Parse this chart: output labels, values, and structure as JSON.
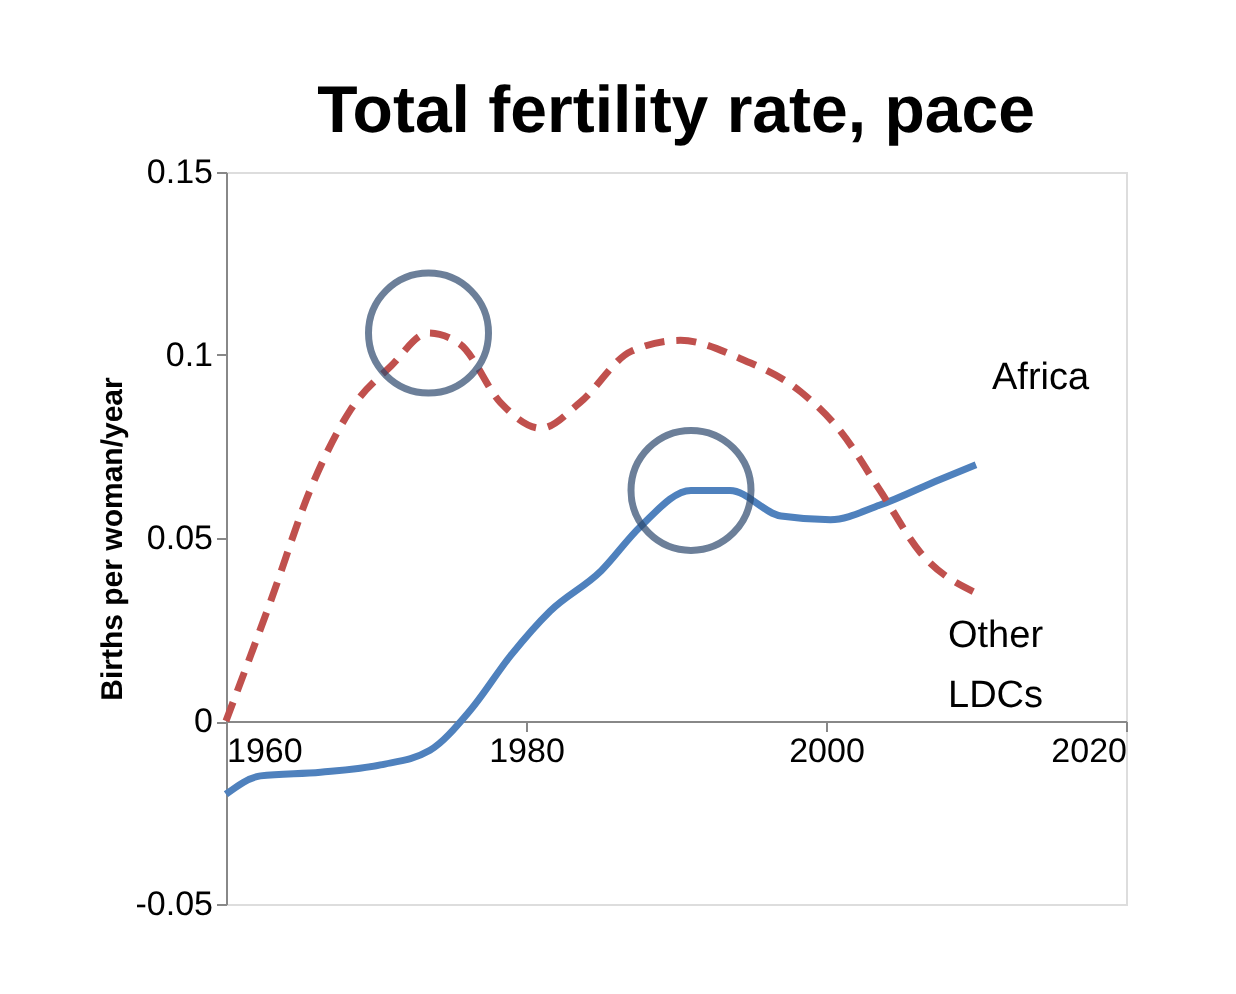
{
  "chart_data": {
    "type": "line",
    "title": "Total fertility rate, pace",
    "ylabel": "Births per woman/year",
    "xlim": [
      1960,
      2020
    ],
    "xticks": [
      1960,
      1980,
      2000,
      2020
    ],
    "ylim": [
      -0.05,
      0.15
    ],
    "yticks": [
      -0.05,
      0,
      0.05,
      0.1,
      0.15
    ],
    "series": [
      {
        "name": "Africa",
        "color": "#4f81bd",
        "line_style": "solid",
        "x": [
          1960,
          1962.3,
          1966.3,
          1970.3,
          1973.6,
          1976.3,
          1979,
          1981.6,
          1985,
          1987.6,
          1991,
          1993.6,
          1997,
          2000.3,
          2003.6,
          2007.6,
          2010
        ],
        "values": [
          -0.02,
          -0.015,
          -0.014,
          -0.012,
          -0.008,
          0.003,
          0.018,
          0.03,
          0.041,
          0.053,
          0.063,
          0.063,
          0.056,
          0.055,
          0.059,
          0.066,
          0.07
        ]
      },
      {
        "name": "Other LDCs",
        "color": "#c0504d",
        "line_style": "dashed",
        "x": [
          1960,
          1963,
          1965.6,
          1968.3,
          1971,
          1973.5,
          1975.6,
          1978.3,
          1981,
          1983.6,
          1987,
          1990.3,
          1994.3,
          1998.3,
          2001,
          2003.6,
          2006.3,
          2010
        ],
        "values": [
          0,
          0.033,
          0.063,
          0.085,
          0.097,
          0.106,
          0.103,
          0.087,
          0.08,
          0.087,
          0.101,
          0.104,
          0.099,
          0.09,
          0.079,
          0.063,
          0.046,
          0.035
        ]
      }
    ]
  }
}
